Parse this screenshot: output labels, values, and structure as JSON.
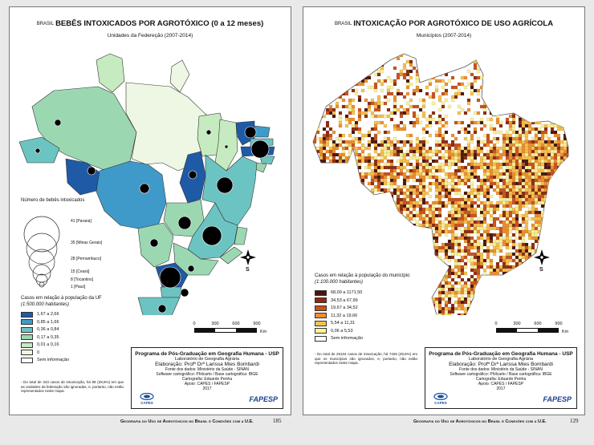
{
  "left": {
    "title_prefix": "BRASIL",
    "title": "BEBÊS INTOXICADOS POR AGROTÓXICO (0 a 12 meses)",
    "subtitle": "Unidades da Federeção (2007-2014)",
    "bubble_legend_title": "Número de bebês intoxicados",
    "bubbles": [
      {
        "value": 41,
        "label": "41 [Paraná]"
      },
      {
        "value": 35,
        "label": "35 [Minas Gerais]"
      },
      {
        "value": 28,
        "label": "28 [Pernambuco]"
      },
      {
        "value": 15,
        "label": "15 [Ceará]"
      },
      {
        "value": 8,
        "label": "8  [Tocantins]"
      },
      {
        "value": 1,
        "label": "1  [Piauí]"
      }
    ],
    "rate_legend_title": "Casos em relação à população da UF",
    "rate_legend_sub": "(1:500.000 habitantes)",
    "classes": [
      {
        "label": "1,67 a 2,66",
        "color": "#1f5aa6"
      },
      {
        "label": "0,85 a 1,66",
        "color": "#3f9ac9"
      },
      {
        "label": "0,36 a 0,84",
        "color": "#6cc4c2"
      },
      {
        "label": "0,17 a 0,35",
        "color": "#9bd8b2"
      },
      {
        "label": "0,01 a 0,16",
        "color": "#c6ebc0"
      },
      {
        "label": "0",
        "color": "#eef7e3"
      },
      {
        "label": "Sem informação",
        "color": "#ffffff"
      }
    ],
    "footnote": "- Do total de 343 casos de intoxicação, há 98 (28,6%) em que as unidades da federação são ignoradas, e, portanto, não estão representados neste mapa.",
    "running_footer": "Geografia do Uso de Agrotóxicos no Brasil e Conexões com a U.E.",
    "page_number": "185"
  },
  "right": {
    "title_prefix": "BRASIL",
    "title": "INTOXICAÇÃO POR AGROTÓXICO DE USO AGRÍCOLA",
    "subtitle": "Municípios (2007-2014)",
    "rate_legend_title": "Casos em relação à população do município",
    "rate_legend_sub": "(1:100.000 habitantes)",
    "classes": [
      {
        "label": "68,00 a 1171,50",
        "color": "#4a1408"
      },
      {
        "label": "34,53 a 67,99",
        "color": "#8e2a0c"
      },
      {
        "label": "19,67 a 34,52",
        "color": "#c9521a"
      },
      {
        "label": "11,32 a 19,66",
        "color": "#ee8f2a"
      },
      {
        "label": "5,54 a 11,31",
        "color": "#f8c14a"
      },
      {
        "label": "0,06 a 5,53",
        "color": "#fdf19a"
      },
      {
        "label": "Sem informação",
        "color": "#ffffff"
      }
    ],
    "footnote": "- Do total de 25104 casos de intoxicação, há 7426 (29,6%) em que os municípios são ignorados, e, portanto, não estão representados neste mapa.",
    "running_footer": "Geografia do Uso de Agrotóxicos no Brasil e Conexões com a U.E.",
    "page_number": "129"
  },
  "credits": {
    "program": "Programa de Pós-Graduação em Geografia Humana - USP",
    "lab": "Laboratório de Geografia Agrária",
    "author": "Elaboração: Profª Drª Larissa Mies Bombardi",
    "source_left": "Fonte dos dados: Ministério da Saúde - SINAN",
    "source_right": "Fonte dos dados: Ministério da Saúde - SINAN",
    "software": "Software cartográfico: Philcarto / Base cartográfica: IBGE",
    "cartography": "Cartografia: Eduardo Penha",
    "support": "Apoio: CAPES / FAPESP",
    "year": "2017",
    "logo_capes": "CAPES",
    "logo_fapesp": "FAPESP"
  },
  "scale": {
    "ticks": [
      "0",
      "300",
      "600",
      "900"
    ],
    "unit": "Km"
  },
  "north_label": "S",
  "icons": [
    "north-arrow-icon",
    "capes-logo",
    "fapesp-logo"
  ]
}
